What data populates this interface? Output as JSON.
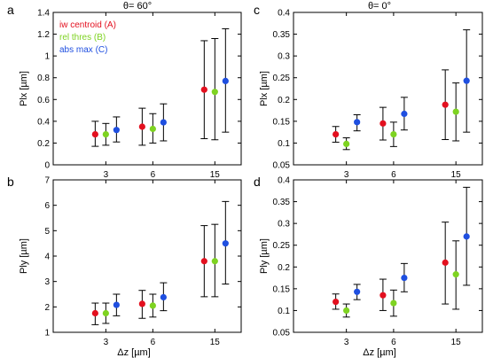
{
  "figure": {
    "group_x_ticks": [
      "3",
      "6",
      "15"
    ],
    "x_label": "Δz [µm]",
    "legend": [
      {
        "label": "iw centroid (A)",
        "color": "#e3101f"
      },
      {
        "label": "rel thres (B)",
        "color": "#7ed321"
      },
      {
        "label": "abs max (C)",
        "color": "#1f4fe0"
      }
    ]
  },
  "chart_data": [
    {
      "panel": "a",
      "title": "θ= 60°",
      "type": "scatter",
      "ylabel": "Plx [µm]",
      "ylim": [
        0,
        1.4
      ],
      "yticks": [
        "0",
        "0.2",
        "0.4",
        "0.6",
        "0.8",
        "1",
        "1.2",
        "1.4"
      ],
      "categories": [
        "3",
        "6",
        "15"
      ],
      "series": [
        {
          "name": "iw centroid (A)",
          "values": [
            0.28,
            0.35,
            0.69
          ],
          "err_low": [
            0.17,
            0.18,
            0.24
          ],
          "err_high": [
            0.4,
            0.52,
            1.14
          ]
        },
        {
          "name": "rel thres (B)",
          "values": [
            0.28,
            0.33,
            0.67
          ],
          "err_low": [
            0.18,
            0.2,
            0.23
          ],
          "err_high": [
            0.38,
            0.47,
            1.16
          ]
        },
        {
          "name": "abs max (C)",
          "values": [
            0.32,
            0.39,
            0.77
          ],
          "err_low": [
            0.21,
            0.22,
            0.3
          ],
          "err_high": [
            0.44,
            0.56,
            1.25
          ]
        }
      ]
    },
    {
      "panel": "b",
      "title": "",
      "type": "scatter",
      "ylabel": "Ply [µm]",
      "ylim": [
        1,
        7
      ],
      "yticks": [
        "1",
        "2",
        "3",
        "4",
        "5",
        "6",
        "7"
      ],
      "categories": [
        "3",
        "6",
        "15"
      ],
      "series": [
        {
          "name": "iw centroid (A)",
          "values": [
            1.75,
            2.12,
            3.8
          ],
          "err_low": [
            1.3,
            1.55,
            2.4
          ],
          "err_high": [
            2.15,
            2.65,
            5.2
          ]
        },
        {
          "name": "rel thres (B)",
          "values": [
            1.75,
            2.05,
            3.8
          ],
          "err_low": [
            1.35,
            1.6,
            2.4
          ],
          "err_high": [
            2.15,
            2.5,
            5.25
          ]
        },
        {
          "name": "abs max (C)",
          "values": [
            2.08,
            2.38,
            4.5
          ],
          "err_low": [
            1.65,
            1.85,
            2.9
          ],
          "err_high": [
            2.5,
            2.95,
            6.15
          ]
        }
      ]
    },
    {
      "panel": "c",
      "title": "θ= 0°",
      "type": "scatter",
      "ylabel": "Plx [µm]",
      "ylim": [
        0.05,
        0.4
      ],
      "yticks": [
        "0.05",
        "0.1",
        "0.15",
        "0.2",
        "0.25",
        "0.3",
        "0.35",
        "0.4"
      ],
      "categories": [
        "3",
        "6",
        "15"
      ],
      "series": [
        {
          "name": "iw centroid (A)",
          "values": [
            0.12,
            0.145,
            0.188
          ],
          "err_low": [
            0.102,
            0.107,
            0.108
          ],
          "err_high": [
            0.138,
            0.182,
            0.268
          ]
        },
        {
          "name": "rel thres (B)",
          "values": [
            0.098,
            0.12,
            0.172
          ],
          "err_low": [
            0.085,
            0.092,
            0.105
          ],
          "err_high": [
            0.112,
            0.148,
            0.238
          ]
        },
        {
          "name": "abs max (C)",
          "values": [
            0.148,
            0.167,
            0.243
          ],
          "err_low": [
            0.128,
            0.13,
            0.125
          ],
          "err_high": [
            0.165,
            0.205,
            0.36
          ]
        }
      ]
    },
    {
      "panel": "d",
      "title": "",
      "type": "scatter",
      "ylabel": "Ply [µm]",
      "ylim": [
        0.05,
        0.4
      ],
      "yticks": [
        "0.05",
        "0.1",
        "0.15",
        "0.2",
        "0.25",
        "0.3",
        "0.35",
        "0.4"
      ],
      "categories": [
        "3",
        "6",
        "15"
      ],
      "series": [
        {
          "name": "iw centroid (A)",
          "values": [
            0.12,
            0.135,
            0.21
          ],
          "err_low": [
            0.103,
            0.1,
            0.115
          ],
          "err_high": [
            0.138,
            0.172,
            0.303
          ]
        },
        {
          "name": "rel thres (B)",
          "values": [
            0.1,
            0.117,
            0.183
          ],
          "err_low": [
            0.085,
            0.087,
            0.103
          ],
          "err_high": [
            0.115,
            0.147,
            0.26
          ]
        },
        {
          "name": "abs max (C)",
          "values": [
            0.143,
            0.175,
            0.27
          ],
          "err_low": [
            0.125,
            0.143,
            0.158
          ],
          "err_high": [
            0.16,
            0.208,
            0.383
          ]
        }
      ]
    }
  ]
}
